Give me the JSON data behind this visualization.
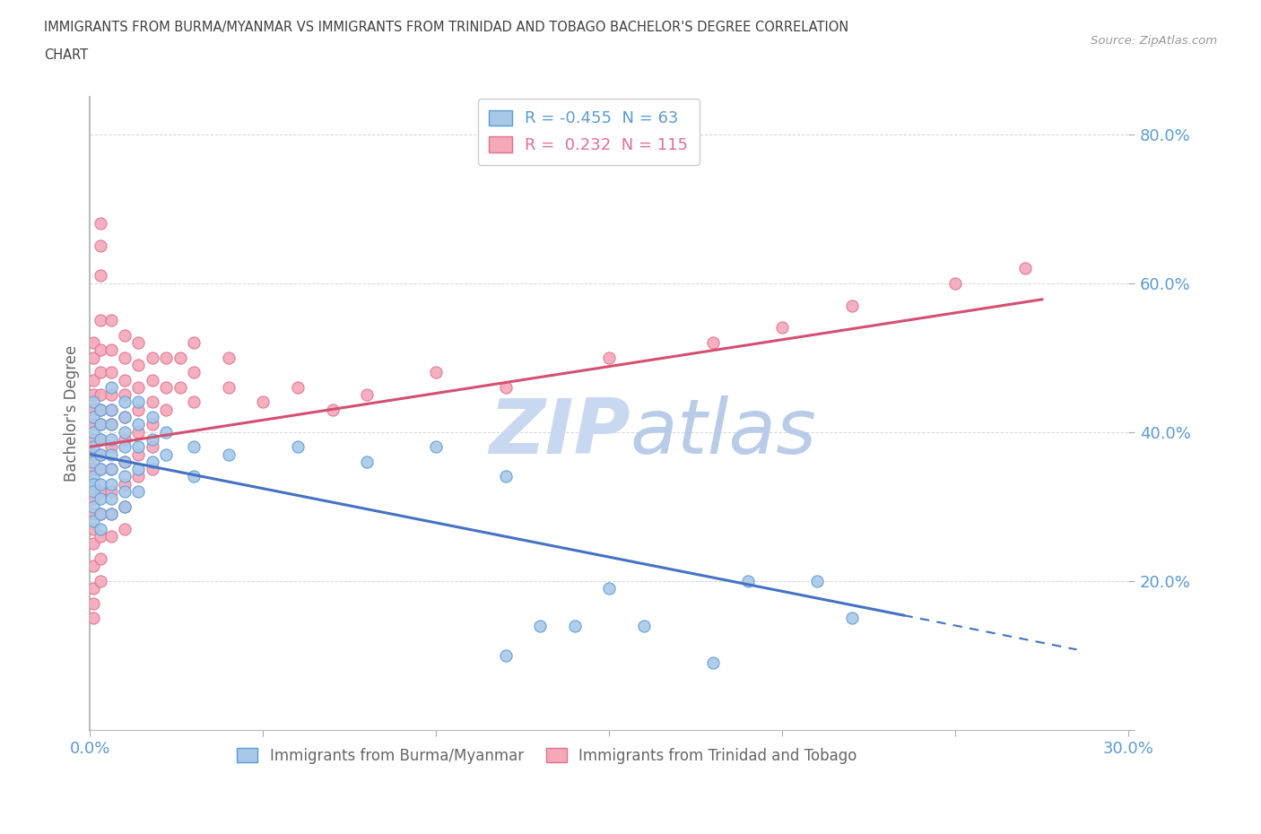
{
  "title_line1": "IMMIGRANTS FROM BURMA/MYANMAR VS IMMIGRANTS FROM TRINIDAD AND TOBAGO BACHELOR'S DEGREE CORRELATION",
  "title_line2": "CHART",
  "source_text": "Source: ZipAtlas.com",
  "ylabel": "Bachelor's Degree",
  "xlim": [
    0.0,
    0.3
  ],
  "ylim": [
    0.0,
    0.85
  ],
  "ytick_vals": [
    0.0,
    0.2,
    0.4,
    0.6,
    0.8
  ],
  "xtick_vals": [
    0.0,
    0.05,
    0.1,
    0.15,
    0.2,
    0.25,
    0.3
  ],
  "blue_R": -0.455,
  "blue_N": 63,
  "pink_R": 0.232,
  "pink_N": 115,
  "blue_color": "#A8C8E8",
  "pink_color": "#F4A8B8",
  "blue_edge_color": "#5B9BD5",
  "pink_edge_color": "#E07090",
  "blue_line_color": "#4472C4",
  "pink_line_color": "#D45070",
  "watermark_color": "#C8D8F0",
  "background_color": "#FFFFFF",
  "grid_color": "#CCCCCC",
  "axis_label_color": "#5B9BD5",
  "title_color": "#404040",
  "blue_line_solid_end": 0.235,
  "blue_line_dash_end": 0.285,
  "blue_intercept": 0.37,
  "blue_slope": -0.92,
  "pink_intercept": 0.38,
  "pink_slope": 0.72,
  "pink_line_end": 0.275,
  "blue_points": [
    [
      0.001,
      0.44
    ],
    [
      0.001,
      0.42
    ],
    [
      0.001,
      0.4
    ],
    [
      0.001,
      0.38
    ],
    [
      0.001,
      0.36
    ],
    [
      0.001,
      0.34
    ],
    [
      0.001,
      0.33
    ],
    [
      0.001,
      0.32
    ],
    [
      0.001,
      0.3
    ],
    [
      0.001,
      0.28
    ],
    [
      0.003,
      0.43
    ],
    [
      0.003,
      0.41
    ],
    [
      0.003,
      0.39
    ],
    [
      0.003,
      0.37
    ],
    [
      0.003,
      0.35
    ],
    [
      0.003,
      0.33
    ],
    [
      0.003,
      0.31
    ],
    [
      0.003,
      0.29
    ],
    [
      0.003,
      0.27
    ],
    [
      0.006,
      0.46
    ],
    [
      0.006,
      0.43
    ],
    [
      0.006,
      0.41
    ],
    [
      0.006,
      0.39
    ],
    [
      0.006,
      0.37
    ],
    [
      0.006,
      0.35
    ],
    [
      0.006,
      0.33
    ],
    [
      0.006,
      0.31
    ],
    [
      0.006,
      0.29
    ],
    [
      0.01,
      0.44
    ],
    [
      0.01,
      0.42
    ],
    [
      0.01,
      0.4
    ],
    [
      0.01,
      0.38
    ],
    [
      0.01,
      0.36
    ],
    [
      0.01,
      0.34
    ],
    [
      0.01,
      0.32
    ],
    [
      0.01,
      0.3
    ],
    [
      0.014,
      0.44
    ],
    [
      0.014,
      0.41
    ],
    [
      0.014,
      0.38
    ],
    [
      0.014,
      0.35
    ],
    [
      0.014,
      0.32
    ],
    [
      0.018,
      0.42
    ],
    [
      0.018,
      0.39
    ],
    [
      0.018,
      0.36
    ],
    [
      0.022,
      0.4
    ],
    [
      0.022,
      0.37
    ],
    [
      0.03,
      0.38
    ],
    [
      0.03,
      0.34
    ],
    [
      0.04,
      0.37
    ],
    [
      0.06,
      0.38
    ],
    [
      0.08,
      0.36
    ],
    [
      0.1,
      0.38
    ],
    [
      0.12,
      0.34
    ],
    [
      0.15,
      0.19
    ],
    [
      0.19,
      0.2
    ],
    [
      0.21,
      0.2
    ],
    [
      0.14,
      0.14
    ],
    [
      0.13,
      0.14
    ],
    [
      0.16,
      0.14
    ],
    [
      0.18,
      0.09
    ],
    [
      0.22,
      0.15
    ],
    [
      0.12,
      0.1
    ]
  ],
  "pink_points": [
    [
      0.001,
      0.52
    ],
    [
      0.001,
      0.5
    ],
    [
      0.001,
      0.47
    ],
    [
      0.001,
      0.45
    ],
    [
      0.001,
      0.43
    ],
    [
      0.001,
      0.41
    ],
    [
      0.001,
      0.39
    ],
    [
      0.001,
      0.37
    ],
    [
      0.001,
      0.35
    ],
    [
      0.001,
      0.33
    ],
    [
      0.001,
      0.31
    ],
    [
      0.001,
      0.29
    ],
    [
      0.001,
      0.27
    ],
    [
      0.001,
      0.25
    ],
    [
      0.001,
      0.22
    ],
    [
      0.001,
      0.19
    ],
    [
      0.001,
      0.17
    ],
    [
      0.001,
      0.15
    ],
    [
      0.003,
      0.68
    ],
    [
      0.003,
      0.65
    ],
    [
      0.003,
      0.61
    ],
    [
      0.003,
      0.55
    ],
    [
      0.003,
      0.51
    ],
    [
      0.003,
      0.48
    ],
    [
      0.003,
      0.45
    ],
    [
      0.003,
      0.43
    ],
    [
      0.003,
      0.41
    ],
    [
      0.003,
      0.39
    ],
    [
      0.003,
      0.37
    ],
    [
      0.003,
      0.35
    ],
    [
      0.003,
      0.32
    ],
    [
      0.003,
      0.29
    ],
    [
      0.003,
      0.26
    ],
    [
      0.003,
      0.23
    ],
    [
      0.003,
      0.2
    ],
    [
      0.006,
      0.55
    ],
    [
      0.006,
      0.51
    ],
    [
      0.006,
      0.48
    ],
    [
      0.006,
      0.45
    ],
    [
      0.006,
      0.43
    ],
    [
      0.006,
      0.41
    ],
    [
      0.006,
      0.38
    ],
    [
      0.006,
      0.35
    ],
    [
      0.006,
      0.32
    ],
    [
      0.006,
      0.29
    ],
    [
      0.006,
      0.26
    ],
    [
      0.01,
      0.53
    ],
    [
      0.01,
      0.5
    ],
    [
      0.01,
      0.47
    ],
    [
      0.01,
      0.45
    ],
    [
      0.01,
      0.42
    ],
    [
      0.01,
      0.39
    ],
    [
      0.01,
      0.36
    ],
    [
      0.01,
      0.33
    ],
    [
      0.01,
      0.3
    ],
    [
      0.01,
      0.27
    ],
    [
      0.014,
      0.52
    ],
    [
      0.014,
      0.49
    ],
    [
      0.014,
      0.46
    ],
    [
      0.014,
      0.43
    ],
    [
      0.014,
      0.4
    ],
    [
      0.014,
      0.37
    ],
    [
      0.014,
      0.34
    ],
    [
      0.018,
      0.5
    ],
    [
      0.018,
      0.47
    ],
    [
      0.018,
      0.44
    ],
    [
      0.018,
      0.41
    ],
    [
      0.018,
      0.38
    ],
    [
      0.018,
      0.35
    ],
    [
      0.022,
      0.5
    ],
    [
      0.022,
      0.46
    ],
    [
      0.022,
      0.43
    ],
    [
      0.026,
      0.5
    ],
    [
      0.026,
      0.46
    ],
    [
      0.03,
      0.52
    ],
    [
      0.03,
      0.48
    ],
    [
      0.03,
      0.44
    ],
    [
      0.04,
      0.5
    ],
    [
      0.04,
      0.46
    ],
    [
      0.05,
      0.44
    ],
    [
      0.06,
      0.46
    ],
    [
      0.07,
      0.43
    ],
    [
      0.08,
      0.45
    ],
    [
      0.1,
      0.48
    ],
    [
      0.12,
      0.46
    ],
    [
      0.15,
      0.5
    ],
    [
      0.18,
      0.52
    ],
    [
      0.2,
      0.54
    ],
    [
      0.22,
      0.57
    ],
    [
      0.25,
      0.6
    ],
    [
      0.27,
      0.62
    ]
  ]
}
